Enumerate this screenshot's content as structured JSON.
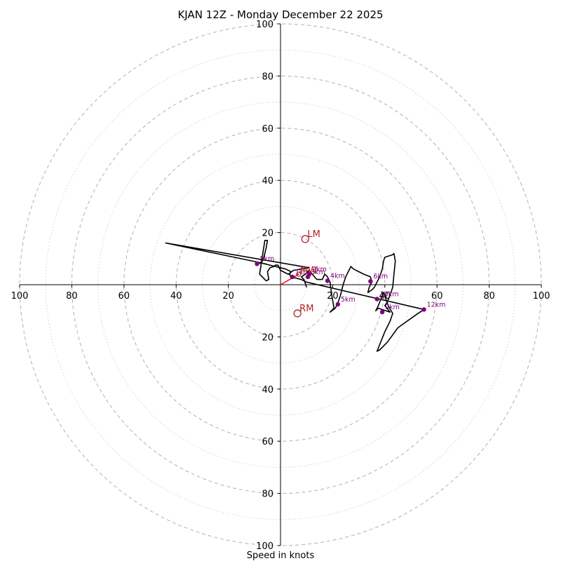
{
  "chart_data": {
    "type": "hodograph",
    "title": "KJAN 12Z - Monday December 22 2025",
    "xlabel": "Speed in knots",
    "units": "knots",
    "range": 100,
    "ring_step_major": 20,
    "ring_step_minor": 10,
    "tick_labels": [
      "100",
      "80",
      "60",
      "40",
      "20",
      "20",
      "40",
      "60",
      "80",
      "100"
    ],
    "y_tick_labels": [
      "100",
      "80",
      "60",
      "40",
      "20",
      "20",
      "40",
      "60",
      "80",
      "100"
    ],
    "trace": [
      [
        10,
        -1
      ],
      [
        9,
        2
      ],
      [
        8,
        3
      ],
      [
        9.5,
        4
      ],
      [
        11,
        5.5
      ],
      [
        13,
        3
      ],
      [
        14,
        2
      ],
      [
        16,
        2
      ],
      [
        17,
        4
      ],
      [
        18,
        3
      ],
      [
        19,
        1
      ],
      [
        19.5,
        -3
      ],
      [
        20,
        -6
      ],
      [
        20.5,
        -9
      ],
      [
        19,
        -10.5
      ],
      [
        21,
        -9
      ],
      [
        22,
        -7
      ],
      [
        23,
        -4
      ],
      [
        24,
        0
      ],
      [
        25,
        3
      ],
      [
        26,
        5
      ],
      [
        27,
        7
      ],
      [
        28,
        6
      ],
      [
        30,
        5
      ],
      [
        32,
        4
      ],
      [
        34.5,
        3
      ],
      [
        35,
        1
      ],
      [
        34,
        -1
      ],
      [
        33.5,
        -3
      ],
      [
        35,
        -2
      ],
      [
        36,
        -1
      ],
      [
        37,
        1
      ],
      [
        38,
        3
      ],
      [
        39,
        6
      ],
      [
        39.5,
        9
      ],
      [
        40,
        10.5
      ],
      [
        43,
        11.5
      ],
      [
        43.5,
        12
      ],
      [
        44,
        9
      ],
      [
        43.5,
        4
      ],
      [
        43,
        -1
      ],
      [
        42,
        -4
      ],
      [
        41,
        -6.5
      ],
      [
        40,
        -8
      ],
      [
        42,
        -10.5
      ],
      [
        37.5,
        -9
      ],
      [
        36.5,
        -10
      ],
      [
        37.5,
        -8
      ],
      [
        38.5,
        -5.5
      ],
      [
        39.5,
        -3
      ],
      [
        41.5,
        -8.5
      ],
      [
        43,
        -11
      ],
      [
        42,
        -14
      ],
      [
        40,
        -18
      ],
      [
        38,
        -23
      ],
      [
        37,
        -25.5
      ],
      [
        38,
        -25
      ],
      [
        41,
        -22
      ],
      [
        45,
        -16.5
      ],
      [
        52,
        -11.5
      ],
      [
        55,
        -9.5
      ],
      [
        10,
        1
      ],
      [
        8,
        2
      ],
      [
        6,
        2.5
      ],
      [
        4,
        3
      ],
      [
        3.5,
        4
      ],
      [
        4,
        5
      ],
      [
        2,
        6
      ],
      [
        0,
        6.5
      ],
      [
        -2,
        7
      ],
      [
        -4,
        7.5
      ],
      [
        -6,
        8
      ],
      [
        -8,
        8.5
      ],
      [
        -44,
        16
      ],
      [
        11,
        6.5
      ],
      [
        5,
        5.5
      ],
      [
        3,
        4
      ],
      [
        0,
        5.5
      ],
      [
        -1,
        7.5
      ],
      [
        -2,
        7.5
      ],
      [
        -2.5,
        7
      ],
      [
        -4,
        6.5
      ],
      [
        -5,
        5
      ],
      [
        -4.5,
        2
      ],
      [
        -5.5,
        1.5
      ],
      [
        -7,
        3
      ],
      [
        -8,
        4
      ],
      [
        -6,
        17
      ],
      [
        -5,
        17
      ],
      [
        -5.5,
        14
      ],
      [
        -6.5,
        10
      ],
      [
        -7,
        9
      ],
      [
        -8,
        8
      ]
    ],
    "height_markers": [
      {
        "label": "1km",
        "u": 4.5,
        "v": 3
      },
      {
        "label": "3km",
        "u": 10.5,
        "v": 3
      },
      {
        "label": "2km",
        "u": 11,
        "v": 4
      },
      {
        "label": "4km",
        "u": 18,
        "v": 1.5
      },
      {
        "label": "5km",
        "u": 22,
        "v": -7.5
      },
      {
        "label": "6km",
        "u": 34.5,
        "v": 1.3
      },
      {
        "label": "9km",
        "u": 39,
        "v": -10.5
      },
      {
        "label": "10km",
        "u": 37,
        "v": -5.5
      },
      {
        "label": "12km",
        "u": 55,
        "v": -9.5
      },
      {
        "label": "5km",
        "u": -9,
        "v": 8
      }
    ],
    "storm_motion": [
      {
        "label": "LM",
        "u": 9.5,
        "v": 17.5
      },
      {
        "label": "RM",
        "u": 6.5,
        "v": -11
      },
      {
        "label": "MW",
        "u": 7,
        "v": 4
      }
    ],
    "shear_vector": {
      "from": [
        0,
        0
      ],
      "to": [
        7,
        4
      ]
    },
    "colors": {
      "trace": "#000000",
      "markers": "#800080",
      "storm_motion": "#b22222",
      "shear": "#ff0000",
      "grid": "#b0b0b0"
    }
  }
}
